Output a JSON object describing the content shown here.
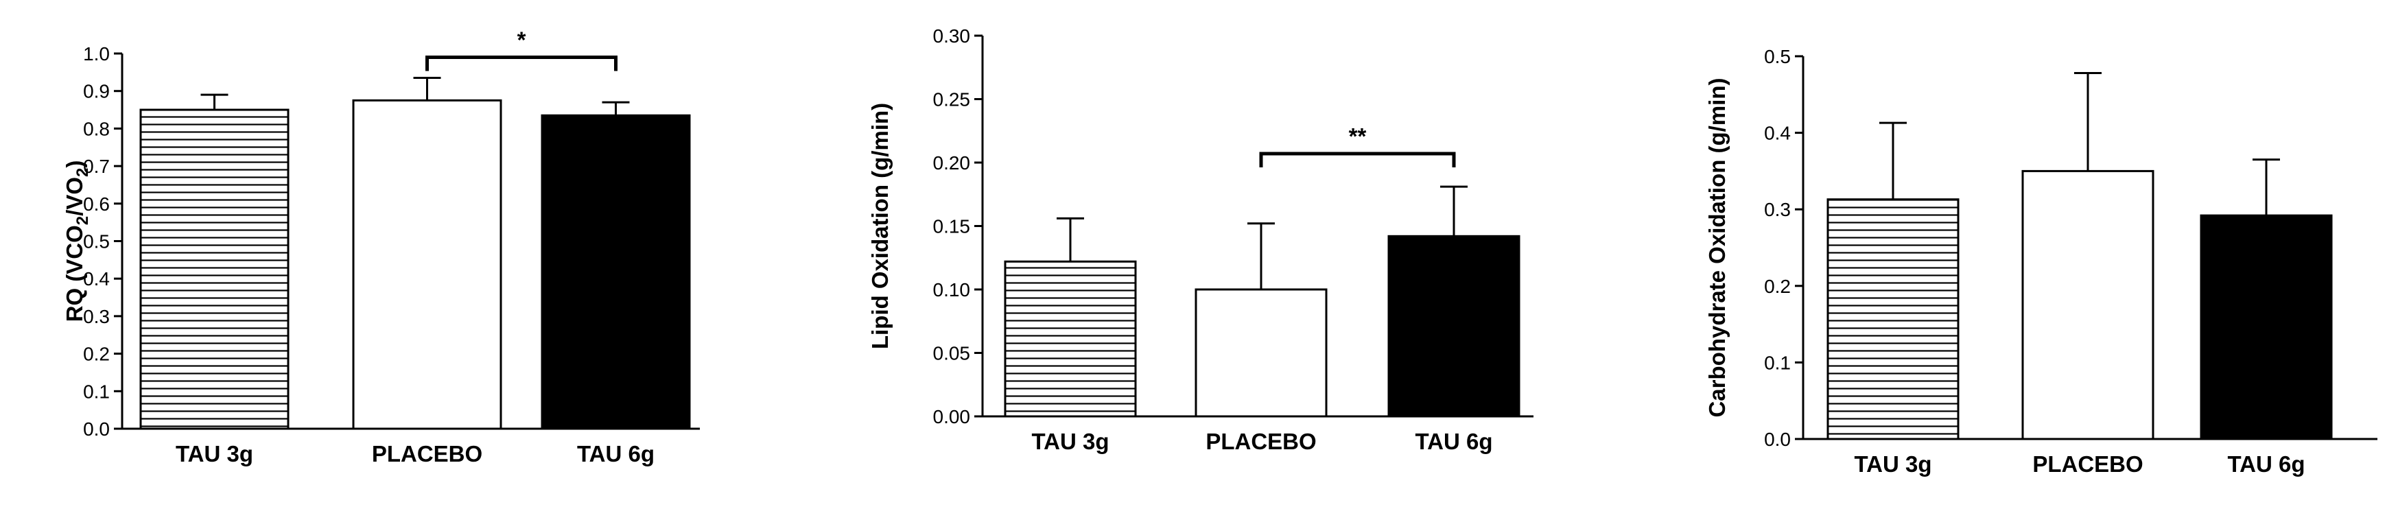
{
  "chart_data": [
    {
      "type": "bar",
      "categories": [
        "TAU 3g",
        "PLACEBO",
        "TAU 6g"
      ],
      "values": [
        0.85,
        0.875,
        0.835
      ],
      "errors": [
        0.04,
        0.06,
        0.035
      ],
      "fills": [
        "hatch",
        "#ffffff",
        "#000000"
      ],
      "ylabel": "RQ (VCO2/VO2)",
      "ylim": [
        0,
        1.0
      ],
      "yticks": [
        "0.0",
        "0.1",
        "0.2",
        "0.3",
        "0.4",
        "0.5",
        "0.6",
        "0.7",
        "0.8",
        "0.9",
        "1.0"
      ],
      "significance": [
        {
          "from": 1,
          "to": 2,
          "label": "*",
          "y": 0.99
        }
      ]
    },
    {
      "type": "bar",
      "categories": [
        "TAU 3g",
        "PLACEBO",
        "TAU 6g"
      ],
      "values": [
        0.122,
        0.1,
        0.142
      ],
      "errors": [
        0.034,
        0.052,
        0.039
      ],
      "fills": [
        "hatch",
        "#ffffff",
        "#000000"
      ],
      "ylabel": "Lipid Oxidation (g/min)",
      "ylim": [
        0,
        0.3
      ],
      "yticks": [
        "0.00",
        "0.05",
        "0.10",
        "0.15",
        "0.20",
        "0.25",
        "0.30"
      ],
      "significance": [
        {
          "from": 1,
          "to": 2,
          "label": "**",
          "y": 0.207
        }
      ]
    },
    {
      "type": "bar",
      "categories": [
        "TAU 3g",
        "PLACEBO",
        "TAU 6g"
      ],
      "values": [
        0.313,
        0.35,
        0.292
      ],
      "errors": [
        0.1,
        0.128,
        0.073
      ],
      "fills": [
        "hatch",
        "#ffffff",
        "#000000"
      ],
      "ylabel": "Carbohydrate Oxidation (g/min)",
      "ylim": [
        0,
        0.5
      ],
      "yticks": [
        "0.0",
        "0.1",
        "0.2",
        "0.3",
        "0.4",
        "0.5"
      ],
      "significance": []
    }
  ]
}
